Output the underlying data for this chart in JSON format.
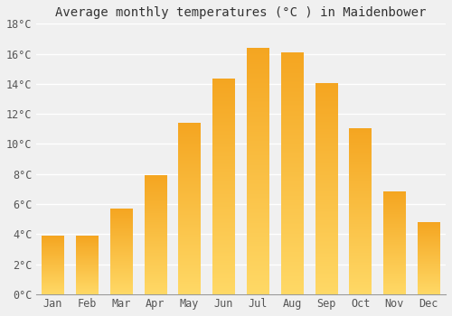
{
  "title": "Average monthly temperatures (°C ) in Maidenbower",
  "months": [
    "Jan",
    "Feb",
    "Mar",
    "Apr",
    "May",
    "Jun",
    "Jul",
    "Aug",
    "Sep",
    "Oct",
    "Nov",
    "Dec"
  ],
  "values": [
    3.9,
    3.9,
    5.7,
    7.9,
    11.4,
    14.3,
    16.4,
    16.1,
    14.0,
    11.0,
    6.8,
    4.8
  ],
  "bar_color_bottom": "#FFD966",
  "bar_color_top": "#F5A623",
  "background_color": "#F0F0F0",
  "grid_color": "#FFFFFF",
  "ylim": [
    0,
    18
  ],
  "yticks": [
    0,
    2,
    4,
    6,
    8,
    10,
    12,
    14,
    16,
    18
  ],
  "title_fontsize": 10,
  "tick_fontsize": 8.5,
  "bar_width": 0.65
}
